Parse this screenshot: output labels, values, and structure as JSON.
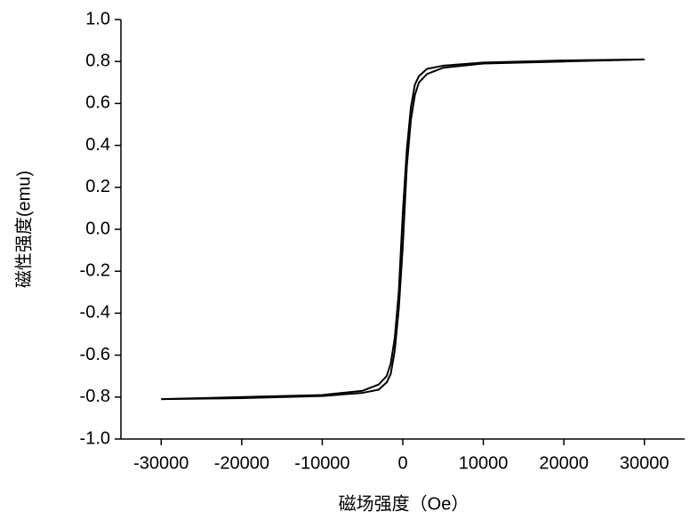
{
  "chart_data": {
    "type": "line",
    "xlabel": "磁场强度（Oe）",
    "ylabel": "磁性强度(emu)",
    "x": [
      -30000,
      -20000,
      -10000,
      -5000,
      -3000,
      -2000,
      -1500,
      -1000,
      -500,
      0,
      500,
      1000,
      1500,
      2000,
      3000,
      5000,
      10000,
      20000,
      30000
    ],
    "series": [
      {
        "color": "#000000",
        "values": [
          -0.81,
          -0.8,
          -0.79,
          -0.77,
          -0.74,
          -0.7,
          -0.64,
          -0.52,
          -0.3,
          0.08,
          0.38,
          0.58,
          0.69,
          0.73,
          0.765,
          0.78,
          0.795,
          0.805,
          0.81
        ]
      },
      {
        "color": "#000000",
        "values": [
          -0.81,
          -0.805,
          -0.795,
          -0.78,
          -0.765,
          -0.73,
          -0.69,
          -0.58,
          -0.38,
          -0.08,
          0.3,
          0.52,
          0.64,
          0.7,
          0.74,
          0.77,
          0.79,
          0.8,
          0.81
        ]
      }
    ],
    "xlim": [
      -35000,
      35000
    ],
    "ylim": [
      -1.0,
      1.0
    ],
    "xticks": [
      -30000,
      -20000,
      -10000,
      0,
      10000,
      20000,
      30000
    ],
    "yticks": [
      {
        "value": -1.0,
        "label": "-1.0"
      },
      -0.8,
      -0.6,
      -0.4,
      -0.2,
      {
        "value": 0.0,
        "label": "0.0"
      },
      0.2,
      0.4,
      0.6,
      0.8,
      {
        "value": 1.0,
        "label": "1.0"
      }
    ]
  }
}
